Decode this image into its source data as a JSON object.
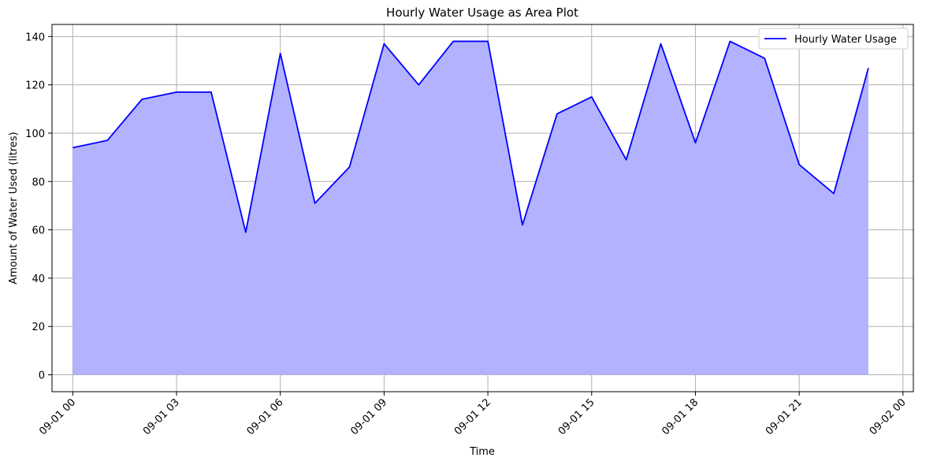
{
  "chart_data": {
    "type": "area",
    "title": "Hourly Water Usage as Area Plot",
    "xlabel": "Time",
    "ylabel": "Amount of Water Used (litres)",
    "x_unit": "hour of day",
    "x_labels_note": "hours 0..23 on 09-01",
    "xlim_hours": [
      -0.6,
      24.3
    ],
    "ylim": [
      -7,
      145
    ],
    "xticks": [
      {
        "hour": 0,
        "label": "09-01 00"
      },
      {
        "hour": 3,
        "label": "09-01 03"
      },
      {
        "hour": 6,
        "label": "09-01 06"
      },
      {
        "hour": 9,
        "label": "09-01 09"
      },
      {
        "hour": 12,
        "label": "09-01 12"
      },
      {
        "hour": 15,
        "label": "09-01 15"
      },
      {
        "hour": 18,
        "label": "09-01 18"
      },
      {
        "hour": 21,
        "label": "09-01 21"
      },
      {
        "hour": 24,
        "label": "09-02 00"
      }
    ],
    "yticks": [
      0,
      20,
      40,
      60,
      80,
      100,
      120,
      140
    ],
    "grid": true,
    "legend_position": "top-right",
    "series": [
      {
        "name": "Hourly Water Usage",
        "line_color": "#0000ff",
        "fill_color": "#b2b2ff",
        "x_hours": [
          0,
          1,
          2,
          3,
          4,
          5,
          6,
          7,
          8,
          9,
          10,
          11,
          12,
          13,
          14,
          15,
          16,
          17,
          18,
          19,
          20,
          21,
          22,
          23
        ],
        "values": [
          94,
          97,
          114,
          117,
          117,
          59,
          133,
          71,
          86,
          137,
          120,
          138,
          138,
          62,
          108,
          115,
          89,
          137,
          96,
          138,
          131,
          87,
          75,
          127
        ]
      }
    ]
  }
}
